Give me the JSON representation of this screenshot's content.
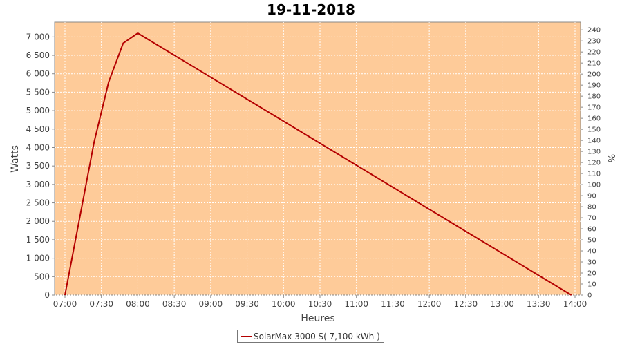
{
  "chart_data": {
    "type": "line",
    "title": "19-11-2018",
    "xlabel": "Heures",
    "ylabel": "Watts",
    "y2label": "%",
    "xlim": [
      "07:00",
      "14:00"
    ],
    "x_ticks": [
      "07:00",
      "07:30",
      "08:00",
      "08:30",
      "09:00",
      "09:30",
      "10:00",
      "10:30",
      "11:00",
      "11:30",
      "12:00",
      "12:30",
      "13:00",
      "13:30",
      "14:00"
    ],
    "ylim": [
      0,
      7400
    ],
    "y_ticks": [
      0,
      500,
      1000,
      1500,
      2000,
      2500,
      3000,
      3500,
      4000,
      4500,
      5000,
      5500,
      6000,
      6500,
      7000
    ],
    "y_tick_labels": [
      "0",
      "500",
      "1 000",
      "1 500",
      "2 000",
      "2 500",
      "3 000",
      "3 500",
      "4 000",
      "4 500",
      "5 000",
      "5 500",
      "6 000",
      "6 500",
      "7 000"
    ],
    "y2lim": [
      0,
      247
    ],
    "y2_ticks": [
      0,
      10,
      20,
      30,
      40,
      50,
      60,
      70,
      80,
      90,
      100,
      110,
      120,
      130,
      140,
      150,
      160,
      170,
      180,
      190,
      200,
      210,
      220,
      230,
      240
    ],
    "grid": true,
    "background": "#fecb99",
    "series": [
      {
        "name": "SolarMax 3000 S( 7,100 kWh )",
        "color": "#b40000",
        "x": [
          "07:00",
          "07:24",
          "07:36",
          "07:48",
          "08:00",
          "13:57"
        ],
        "y": [
          0,
          4150,
          5780,
          6830,
          7100,
          0
        ]
      }
    ],
    "legend": "bottom-center"
  }
}
